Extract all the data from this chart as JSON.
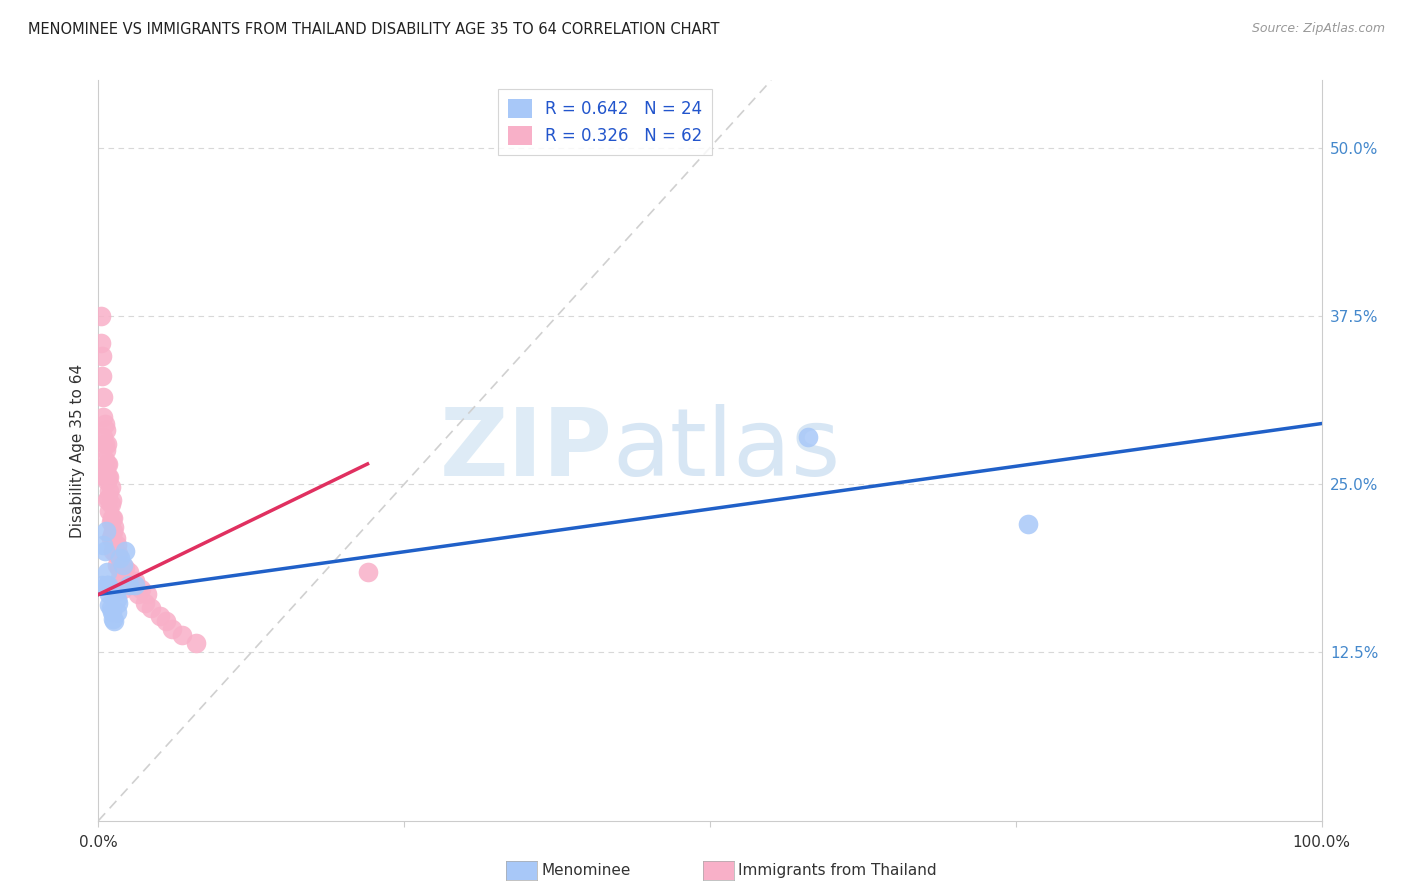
{
  "title": "MENOMINEE VS IMMIGRANTS FROM THAILAND DISABILITY AGE 35 TO 64 CORRELATION CHART",
  "source": "Source: ZipAtlas.com",
  "ylabel": "Disability Age 35 to 64",
  "right_ytick_vals": [
    0.125,
    0.25,
    0.375,
    0.5
  ],
  "right_ytick_labels": [
    "12.5%",
    "25.0%",
    "37.5%",
    "50.0%"
  ],
  "xlim": [
    0.0,
    1.0
  ],
  "ylim": [
    0.0,
    0.55
  ],
  "legend_R1": "R = 0.642",
  "legend_N1": "N = 24",
  "legend_R2": "R = 0.326",
  "legend_N2": "N = 62",
  "color_blue": "#a8c8f8",
  "color_pink": "#f8b0c8",
  "line_blue": "#2060c8",
  "line_pink": "#e03060",
  "diagonal_color": "#d0d0d0",
  "grid_color": "#d8d8d8",
  "watermark_zip": "ZIP",
  "watermark_atlas": "atlas",
  "blue_line_x": [
    0.0,
    1.0
  ],
  "blue_line_y": [
    0.168,
    0.295
  ],
  "pink_line_x": [
    0.0,
    0.22
  ],
  "pink_line_y": [
    0.168,
    0.265
  ],
  "menominee_x": [
    0.003,
    0.004,
    0.005,
    0.006,
    0.007,
    0.007,
    0.008,
    0.009,
    0.009,
    0.01,
    0.011,
    0.012,
    0.013,
    0.014,
    0.015,
    0.015,
    0.016,
    0.018,
    0.02,
    0.022,
    0.025,
    0.03,
    0.58,
    0.76
  ],
  "menominee_y": [
    0.175,
    0.205,
    0.2,
    0.215,
    0.185,
    0.175,
    0.175,
    0.168,
    0.16,
    0.158,
    0.155,
    0.15,
    0.148,
    0.17,
    0.165,
    0.155,
    0.162,
    0.195,
    0.19,
    0.2,
    0.175,
    0.175,
    0.285,
    0.22
  ],
  "thailand_x": [
    0.002,
    0.002,
    0.003,
    0.003,
    0.004,
    0.004,
    0.004,
    0.005,
    0.005,
    0.005,
    0.005,
    0.006,
    0.006,
    0.006,
    0.007,
    0.007,
    0.007,
    0.007,
    0.008,
    0.008,
    0.008,
    0.009,
    0.009,
    0.009,
    0.01,
    0.01,
    0.01,
    0.01,
    0.011,
    0.011,
    0.011,
    0.012,
    0.012,
    0.012,
    0.013,
    0.013,
    0.014,
    0.014,
    0.015,
    0.015,
    0.016,
    0.017,
    0.018,
    0.019,
    0.02,
    0.02,
    0.022,
    0.023,
    0.025,
    0.028,
    0.03,
    0.032,
    0.035,
    0.038,
    0.04,
    0.043,
    0.05,
    0.055,
    0.06,
    0.068,
    0.08,
    0.22
  ],
  "thailand_y": [
    0.375,
    0.355,
    0.345,
    0.33,
    0.315,
    0.3,
    0.285,
    0.295,
    0.28,
    0.268,
    0.255,
    0.29,
    0.275,
    0.26,
    0.28,
    0.265,
    0.252,
    0.238,
    0.265,
    0.255,
    0.24,
    0.255,
    0.245,
    0.23,
    0.248,
    0.235,
    0.222,
    0.21,
    0.238,
    0.225,
    0.212,
    0.225,
    0.215,
    0.2,
    0.218,
    0.205,
    0.21,
    0.198,
    0.205,
    0.19,
    0.198,
    0.188,
    0.18,
    0.175,
    0.185,
    0.172,
    0.188,
    0.178,
    0.185,
    0.175,
    0.178,
    0.168,
    0.172,
    0.162,
    0.168,
    0.158,
    0.152,
    0.148,
    0.142,
    0.138,
    0.132,
    0.185
  ]
}
